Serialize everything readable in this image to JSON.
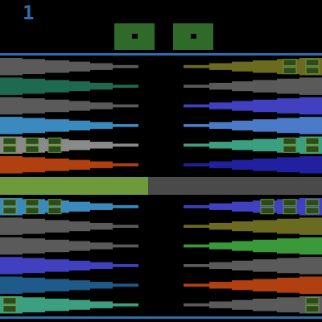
{
  "hud": {
    "score": "1",
    "score_color": "#2a6fb0",
    "dice": [
      {
        "value": "1",
        "face_color": "#2f6a2a",
        "pip_color": "#000000"
      },
      {
        "value": "1",
        "face_color": "#2f6a2a",
        "pip_color": "#000000"
      }
    ]
  },
  "colors": {
    "background": "#000000",
    "border": "#2a6fb0",
    "center_bar": "#000000",
    "checker_dark": "#2c4a1c",
    "checker_light": "#3c3c3c"
  },
  "board": {
    "divider": {
      "left_color": "#6c9a3c",
      "right_color": "#4a4a4a",
      "split_fraction": 0.46
    },
    "upper_left": [
      {
        "color": "#5a5a5a",
        "checkers": 0
      },
      {
        "color": "#1e6a50",
        "checkers": 0
      },
      {
        "color": "#5a5a5a",
        "checkers": 0
      },
      {
        "color": "#3a8ac0",
        "checkers": 0
      },
      {
        "color": "#8a8a8a",
        "checkers": 3
      },
      {
        "color": "#b04010",
        "checkers": 0
      }
    ],
    "upper_right": [
      {
        "color": "#6a6a20",
        "checkers": 2
      },
      {
        "color": "#5a5a5a",
        "checkers": 0
      },
      {
        "color": "#4040c0",
        "checkers": 0
      },
      {
        "color": "#4a7ac8",
        "checkers": 0
      },
      {
        "color": "#3aa080",
        "checkers": 2
      },
      {
        "color": "#2020a0",
        "checkers": 0
      }
    ],
    "lower_left": [
      {
        "color": "#3a8ac0",
        "checkers": 3
      },
      {
        "color": "#5a5a5a",
        "checkers": 0
      },
      {
        "color": "#5a5a5a",
        "checkers": 0
      },
      {
        "color": "#4040c0",
        "checkers": 0
      },
      {
        "color": "#1e5a8a",
        "checkers": 0
      },
      {
        "color": "#3aa080",
        "checkers": 1
      }
    ],
    "lower_right": [
      {
        "color": "#4040c0",
        "checkers": 3
      },
      {
        "color": "#6a6a20",
        "checkers": 0
      },
      {
        "color": "#3a9a3a",
        "checkers": 0
      },
      {
        "color": "#5a5a5a",
        "checkers": 0
      },
      {
        "color": "#b04010",
        "checkers": 0
      },
      {
        "color": "#5a5a5a",
        "checkers": 1
      }
    ]
  }
}
